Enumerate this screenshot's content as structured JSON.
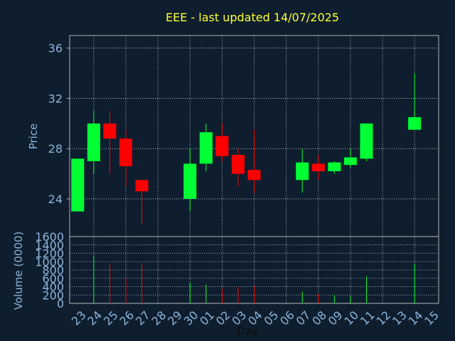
{
  "colors": {
    "background": "#0e1e2e",
    "up": "#00ff33",
    "down": "#ff0000",
    "title": "#ffff33",
    "axis_text": "#8fb4d9",
    "frame": "#b0b0b0",
    "grid": "#d0d0d0"
  },
  "chart_data": [
    {
      "type": "candlestick",
      "title": "EEE - last updated 14/07/2025",
      "ylabel": "Price",
      "ylim": [
        21,
        37
      ],
      "yticks": [
        24,
        28,
        32,
        36
      ],
      "categories": [
        "23",
        "24",
        "25",
        "26",
        "27",
        "28",
        "29",
        "30",
        "01",
        "02",
        "03",
        "04",
        "05",
        "06",
        "07",
        "08",
        "09",
        "10",
        "11",
        "12",
        "13",
        "14",
        "15"
      ],
      "grid": true,
      "candles": [
        {
          "x": "23",
          "open": 23.0,
          "high": 27.2,
          "low": 23.0,
          "close": 27.2
        },
        {
          "x": "24",
          "open": 27.0,
          "high": 31.0,
          "low": 26.0,
          "close": 30.0
        },
        {
          "x": "25",
          "open": 30.0,
          "high": 31.0,
          "low": 26.0,
          "close": 28.8
        },
        {
          "x": "26",
          "open": 28.8,
          "high": 29.5,
          "low": 25.0,
          "close": 26.6
        },
        {
          "x": "27",
          "open": 25.5,
          "high": 25.5,
          "low": 22.0,
          "close": 24.6
        },
        {
          "x": "30",
          "open": 24.0,
          "high": 28.0,
          "low": 23.0,
          "close": 26.8
        },
        {
          "x": "01",
          "open": 26.8,
          "high": 30.0,
          "low": 26.2,
          "close": 29.3
        },
        {
          "x": "02",
          "open": 29.0,
          "high": 30.0,
          "low": 27.0,
          "close": 27.4
        },
        {
          "x": "03",
          "open": 27.5,
          "high": 28.0,
          "low": 25.0,
          "close": 26.0
        },
        {
          "x": "04",
          "open": 26.3,
          "high": 29.5,
          "low": 24.5,
          "close": 25.5
        },
        {
          "x": "07",
          "open": 25.5,
          "high": 28.0,
          "low": 24.5,
          "close": 26.9
        },
        {
          "x": "08",
          "open": 26.8,
          "high": 27.5,
          "low": 25.5,
          "close": 26.2
        },
        {
          "x": "09",
          "open": 26.2,
          "high": 27.0,
          "low": 26.0,
          "close": 26.9
        },
        {
          "x": "10",
          "open": 26.7,
          "high": 28.0,
          "low": 26.5,
          "close": 27.3
        },
        {
          "x": "11",
          "open": 27.2,
          "high": 30.0,
          "low": 27.0,
          "close": 30.0
        },
        {
          "x": "14",
          "open": 29.5,
          "high": 34.0,
          "low": 29.5,
          "close": 30.5
        }
      ]
    },
    {
      "type": "bar",
      "xlabel": "Day",
      "ylabel": "Volume (0000)",
      "ylim": [
        0,
        1600
      ],
      "yticks": [
        0,
        200,
        400,
        600,
        800,
        1000,
        1200,
        1400,
        1600
      ],
      "categories": [
        "23",
        "24",
        "25",
        "26",
        "27",
        "28",
        "29",
        "30",
        "01",
        "02",
        "03",
        "04",
        "05",
        "06",
        "07",
        "08",
        "09",
        "10",
        "11",
        "12",
        "13",
        "14",
        "15"
      ],
      "grid": true,
      "values": [
        {
          "x": "24",
          "volume": 1150,
          "direction": "up"
        },
        {
          "x": "25",
          "volume": 950,
          "direction": "down"
        },
        {
          "x": "26",
          "volume": 600,
          "direction": "down"
        },
        {
          "x": "27",
          "volume": 950,
          "direction": "down"
        },
        {
          "x": "30",
          "volume": 500,
          "direction": "up"
        },
        {
          "x": "01",
          "volume": 450,
          "direction": "up"
        },
        {
          "x": "02",
          "volume": 350,
          "direction": "down"
        },
        {
          "x": "03",
          "volume": 380,
          "direction": "down"
        },
        {
          "x": "04",
          "volume": 420,
          "direction": "down"
        },
        {
          "x": "07",
          "volume": 280,
          "direction": "up"
        },
        {
          "x": "08",
          "volume": 220,
          "direction": "down"
        },
        {
          "x": "09",
          "volume": 200,
          "direction": "up"
        },
        {
          "x": "10",
          "volume": 180,
          "direction": "up"
        },
        {
          "x": "11",
          "volume": 650,
          "direction": "up"
        },
        {
          "x": "14",
          "volume": 950,
          "direction": "up"
        }
      ]
    }
  ]
}
